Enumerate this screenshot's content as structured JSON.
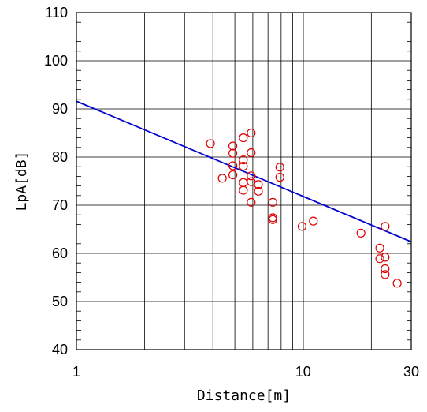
{
  "chart_data": {
    "type": "scatter",
    "title": "",
    "xlabel": "Distance[m]",
    "ylabel": "LpA[dB]",
    "x_scale": "log",
    "xlim": [
      1,
      30
    ],
    "ylim": [
      40,
      110
    ],
    "x_ticks": [
      1,
      10,
      30
    ],
    "x_tick_labels": [
      "1",
      "10",
      "30"
    ],
    "y_ticks": [
      40,
      50,
      60,
      70,
      80,
      90,
      100,
      110
    ],
    "y_tick_labels": [
      "40",
      "50",
      "60",
      "70",
      "80",
      "90",
      "100",
      "110"
    ],
    "grid": true,
    "colors": {
      "points": "#e00000",
      "fit_line": "#0000d0",
      "grid": "#000000"
    },
    "series": [
      {
        "type": "scatter",
        "marker": "open-circle",
        "points": [
          {
            "x": 3.9,
            "y": 82.8
          },
          {
            "x": 4.4,
            "y": 75.6
          },
          {
            "x": 4.9,
            "y": 82.3
          },
          {
            "x": 4.9,
            "y": 80.8
          },
          {
            "x": 4.9,
            "y": 78.2
          },
          {
            "x": 4.9,
            "y": 76.3
          },
          {
            "x": 5.45,
            "y": 84.0
          },
          {
            "x": 5.45,
            "y": 79.4
          },
          {
            "x": 5.45,
            "y": 78.1
          },
          {
            "x": 5.45,
            "y": 74.7
          },
          {
            "x": 5.45,
            "y": 73.1
          },
          {
            "x": 5.9,
            "y": 85.0
          },
          {
            "x": 5.9,
            "y": 80.9
          },
          {
            "x": 5.9,
            "y": 76.1
          },
          {
            "x": 5.9,
            "y": 74.9
          },
          {
            "x": 5.9,
            "y": 70.6
          },
          {
            "x": 6.35,
            "y": 74.3
          },
          {
            "x": 6.35,
            "y": 72.9
          },
          {
            "x": 7.35,
            "y": 70.6
          },
          {
            "x": 7.35,
            "y": 67.4
          },
          {
            "x": 7.35,
            "y": 67.0
          },
          {
            "x": 7.9,
            "y": 77.9
          },
          {
            "x": 7.9,
            "y": 75.8
          },
          {
            "x": 9.9,
            "y": 65.6
          },
          {
            "x": 11.1,
            "y": 66.7
          },
          {
            "x": 18.0,
            "y": 64.2
          },
          {
            "x": 21.8,
            "y": 61.1
          },
          {
            "x": 21.8,
            "y": 58.9
          },
          {
            "x": 23.0,
            "y": 65.6
          },
          {
            "x": 23.0,
            "y": 59.2
          },
          {
            "x": 23.0,
            "y": 56.8
          },
          {
            "x": 23.0,
            "y": 55.6
          },
          {
            "x": 26.0,
            "y": 53.8
          }
        ]
      },
      {
        "type": "line",
        "points": [
          {
            "x": 1,
            "y": 91.6
          },
          {
            "x": 30,
            "y": 62.4
          }
        ]
      }
    ]
  }
}
